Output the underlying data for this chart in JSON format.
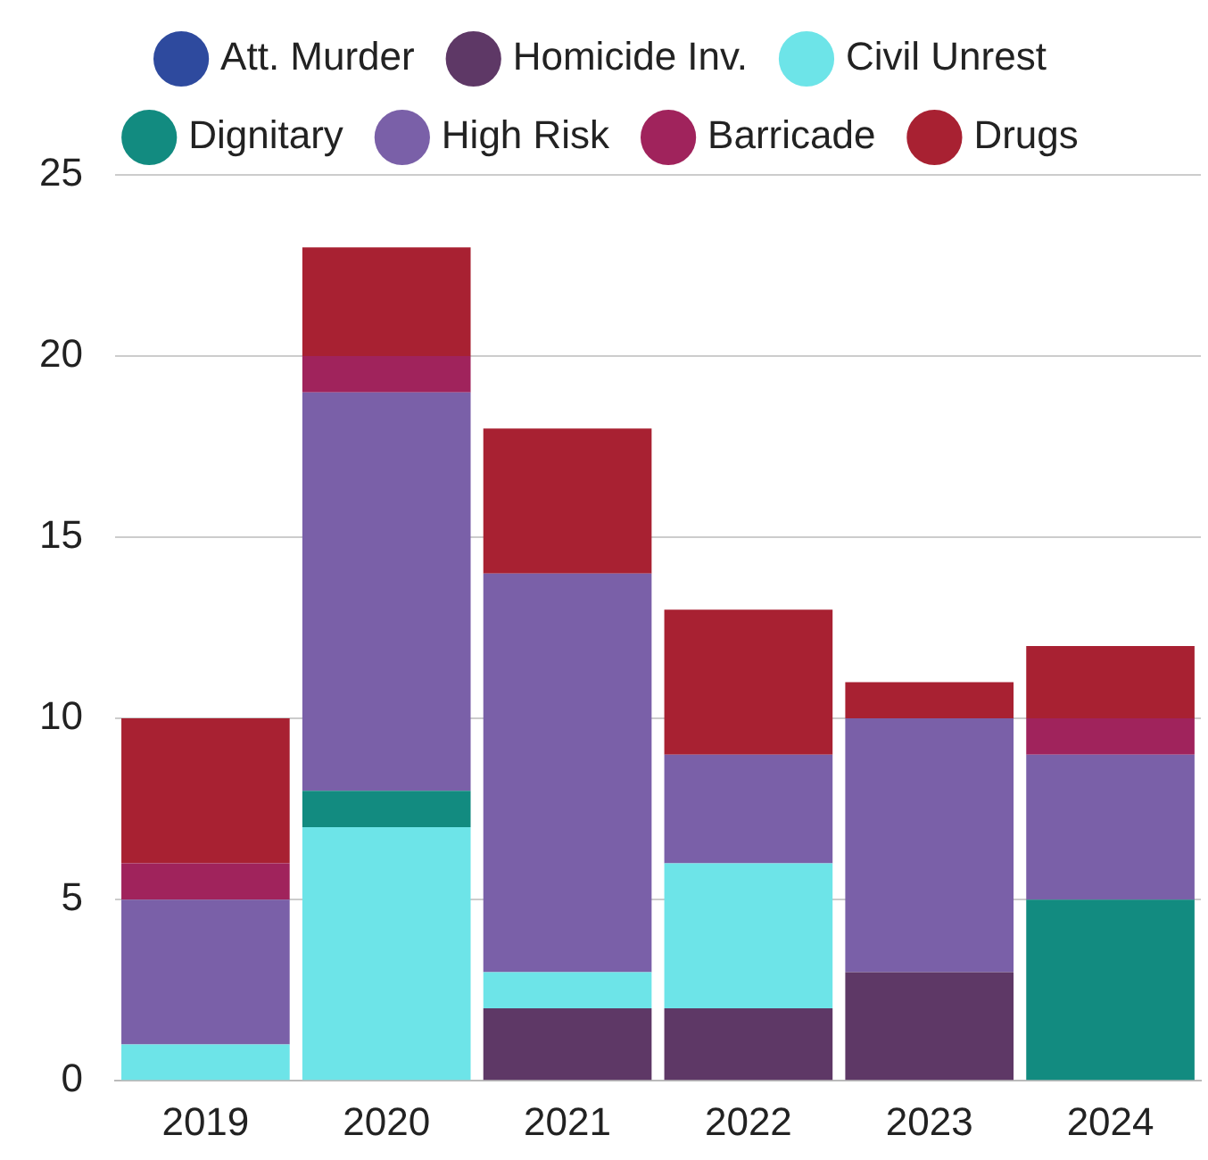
{
  "chart_data": {
    "type": "bar",
    "stacked": true,
    "categories": [
      "2019",
      "2020",
      "2021",
      "2022",
      "2023",
      "2024"
    ],
    "series": [
      {
        "name": "Att. Murder",
        "color": "#2e4a9e",
        "values": [
          0,
          0,
          0,
          0,
          0,
          0
        ]
      },
      {
        "name": "Homicide Inv.",
        "color": "#5e3866",
        "values": [
          0,
          0,
          2,
          2,
          3,
          0
        ]
      },
      {
        "name": "Civil Unrest",
        "color": "#6de4e8",
        "values": [
          1,
          7,
          1,
          4,
          0,
          0
        ]
      },
      {
        "name": "Dignitary",
        "color": "#128b80",
        "values": [
          0,
          1,
          0,
          0,
          0,
          5
        ]
      },
      {
        "name": "High Risk",
        "color": "#7a60a8",
        "values": [
          4,
          11,
          11,
          3,
          7,
          4
        ]
      },
      {
        "name": "Barricade",
        "color": "#a0235c",
        "values": [
          1,
          1,
          0,
          0,
          0,
          1
        ]
      },
      {
        "name": "Drugs",
        "color": "#a82132",
        "values": [
          4,
          3,
          4,
          4,
          1,
          2
        ]
      }
    ],
    "ylim": [
      0,
      25
    ],
    "yticks": [
      0,
      5,
      10,
      15,
      20,
      25
    ],
    "grid": "y",
    "legend": "top"
  }
}
